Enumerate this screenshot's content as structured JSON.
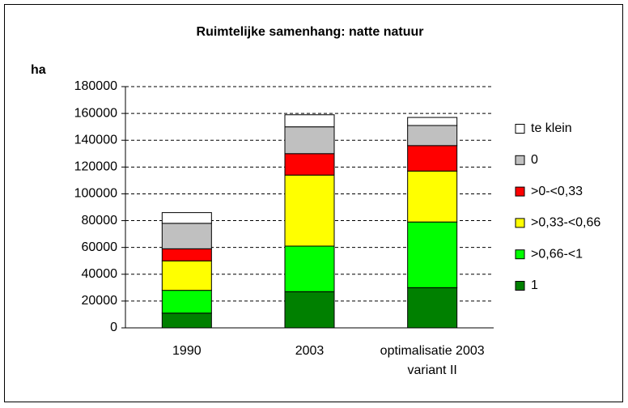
{
  "chart_data": {
    "type": "stacked_bar",
    "title": "Ruimtelijke samenhang: natte natuur",
    "y_label": "ha",
    "categories": [
      "1990",
      "2003",
      "optimalisatie 2003 variant II"
    ],
    "series": [
      {
        "name": "1",
        "color": "#008000",
        "values": [
          11000,
          27000,
          30000
        ]
      },
      {
        "name": ">0,66-<1",
        "color": "#00ff00",
        "values": [
          17000,
          34000,
          49000
        ]
      },
      {
        "name": ">0,33-<0,66",
        "color": "#ffff00",
        "values": [
          22000,
          53000,
          38000
        ]
      },
      {
        "name": ">0-<0,33",
        "color": "#ff0000",
        "values": [
          9000,
          16000,
          19000
        ]
      },
      {
        "name": "0",
        "color": "#c0c0c0",
        "values": [
          19000,
          20000,
          15000
        ]
      },
      {
        "name": "te klein",
        "color": "#ffffff",
        "values": [
          8000,
          9000,
          6000
        ]
      }
    ],
    "ylim": [
      0,
      180000
    ],
    "yticks": [
      0,
      20000,
      40000,
      60000,
      80000,
      100000,
      120000,
      140000,
      160000,
      180000
    ],
    "grid": true,
    "legend": "right"
  }
}
